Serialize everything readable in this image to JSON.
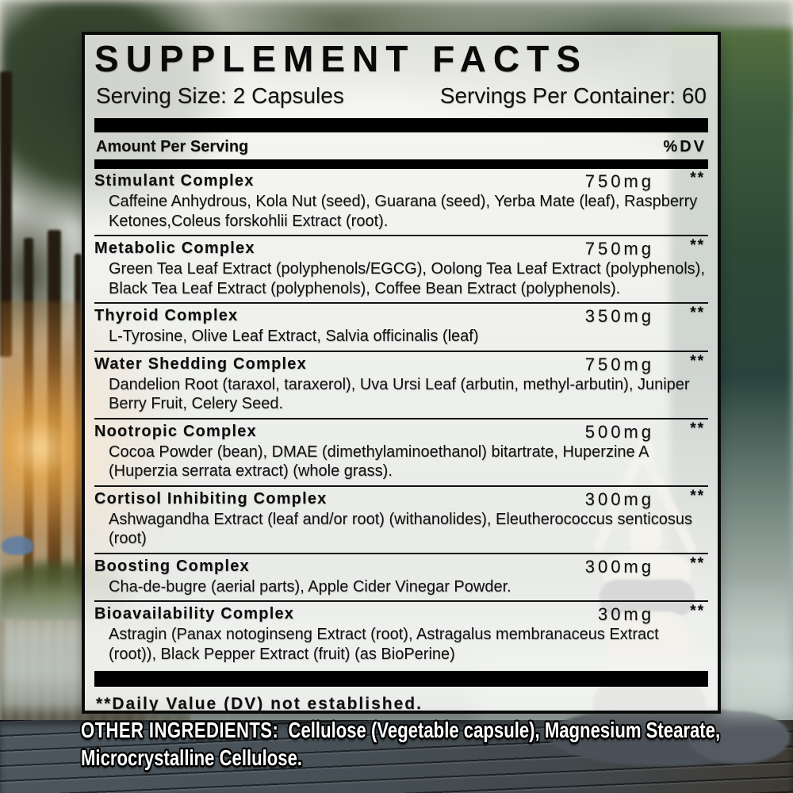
{
  "label": {
    "title": "SUPPLEMENT FACTS",
    "serving_size": "Serving Size: 2 Capsules",
    "servings_per_container": "Servings Per Container: 60",
    "columns": {
      "amount_header": "Amount Per Serving",
      "dv_header": "%DV"
    },
    "rows": [
      {
        "name": "Stimulant Complex",
        "amount": "750mg",
        "dv": "**",
        "ingredients": "Caffeine Anhydrous, Kola Nut (seed), Guarana (seed), Yerba Mate (leaf), Raspberry Ketones,Coleus forskohlii Extract (root)."
      },
      {
        "name": "Metabolic Complex",
        "amount": "750mg",
        "dv": "**",
        "ingredients": "Green Tea Leaf Extract (polyphenols/EGCG), Oolong Tea Leaf Extract (polyphenols), Black Tea Leaf Extract (polyphenols), Coffee Bean Extract (polyphenols)."
      },
      {
        "name": "Thyroid Complex",
        "amount": "350mg",
        "dv": "**",
        "ingredients": "L-Tyrosine, Olive Leaf Extract, Salvia officinalis (leaf)"
      },
      {
        "name": "Water Shedding Complex",
        "amount": "750mg",
        "dv": "**",
        "ingredients": "Dandelion Root (taraxol, taraxerol), Uva Ursi Leaf (arbutin, methyl-arbutin), Juniper Berry Fruit, Celery Seed."
      },
      {
        "name": "Nootropic Complex",
        "amount": "500mg",
        "dv": "**",
        "ingredients": "Cocoa Powder (bean), DMAE (dimethylaminoethanol) bitartrate, Huperzine A (Huperzia serrata extract) (whole grass)."
      },
      {
        "name": "Cortisol Inhibiting Complex",
        "amount": "300mg",
        "dv": "**",
        "ingredients": "Ashwagandha Extract (leaf and/or root) (withanolides), Eleutherococcus senticosus (root)"
      },
      {
        "name": "Boosting Complex",
        "amount": "300mg",
        "dv": "**",
        "ingredients": "Cha-de-bugre (aerial parts), Apple Cider Vinegar Powder."
      },
      {
        "name": "Bioavailability Complex",
        "amount": "30mg",
        "dv": "**",
        "ingredients": "Astragin (Panax notoginseng Extract (root), Astragalus membranaceus Extract (root)), Black Pepper Extract (fruit) (as BioPerine)"
      }
    ],
    "footnote": "**Daily Value (DV) not established."
  },
  "other_ingredients": {
    "label": "OTHER INGREDIENTS:",
    "text": "  Cellulose (Vegetable capsule), Magnesium Stearate, Microcrystalline Cellulose."
  },
  "colors": {
    "label_text": "#0d0d0d",
    "bar": "#000000",
    "panel_bg": "#fafaf7",
    "panel_border": "#0b0b0b",
    "outline_text": "#ffffff"
  }
}
